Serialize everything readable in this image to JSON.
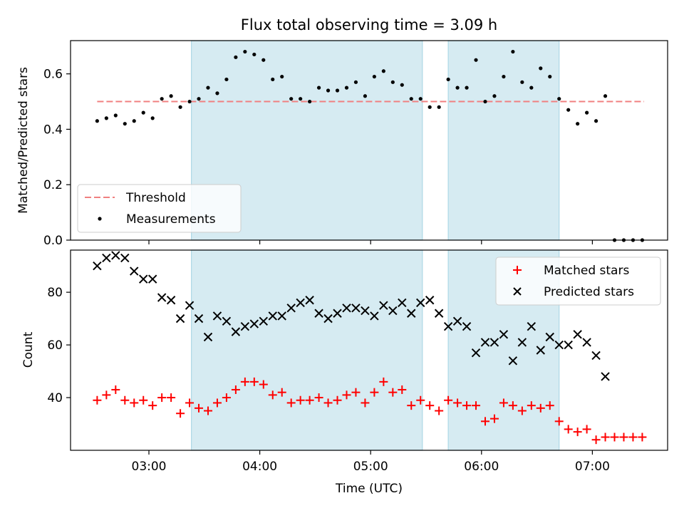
{
  "title": "Flux total observing time = 3.09 h",
  "xlabel": "Time (UTC)",
  "x_tick_labels": [
    "03:00",
    "04:00",
    "05:00",
    "06:00",
    "07:00"
  ],
  "colors": {
    "shade": "#add8e6",
    "threshold": "#f08080",
    "measurements": "#000000",
    "matched": "#ff0000",
    "predicted": "#000000"
  },
  "chart_data": [
    {
      "type": "scatter",
      "ylabel": "Matched/Predicted stars",
      "ylim": [
        0,
        0.72
      ],
      "y_ticks": [
        "0.0",
        "0.2",
        "0.4",
        "0.6"
      ],
      "y_tick_values": [
        0,
        0.2,
        0.4,
        0.6
      ],
      "shaded_intervals": [
        [
          "03:23",
          "05:28"
        ],
        [
          "05:42",
          "06:42"
        ]
      ],
      "legend": {
        "placement": "lower-left",
        "entries": [
          "Threshold",
          "Measurements"
        ]
      },
      "threshold": {
        "name": "Threshold",
        "value": 0.5,
        "x_range": [
          "02:32",
          "07:28"
        ]
      },
      "series": [
        {
          "name": "Measurements",
          "x": [
            "02:32",
            "02:37",
            "02:42",
            "02:47",
            "02:52",
            "02:57",
            "03:02",
            "03:07",
            "03:12",
            "03:17",
            "03:22",
            "03:27",
            "03:32",
            "03:37",
            "03:42",
            "03:47",
            "03:52",
            "03:57",
            "04:02",
            "04:07",
            "04:12",
            "04:17",
            "04:22",
            "04:27",
            "04:32",
            "04:37",
            "04:42",
            "04:47",
            "04:52",
            "04:57",
            "05:02",
            "05:07",
            "05:12",
            "05:17",
            "05:22",
            "05:27",
            "05:32",
            "05:37",
            "05:42",
            "05:47",
            "05:52",
            "05:57",
            "06:02",
            "06:07",
            "06:12",
            "06:17",
            "06:22",
            "06:27",
            "06:32",
            "06:37",
            "06:42",
            "06:47",
            "06:52",
            "06:57",
            "07:02",
            "07:07",
            "07:12",
            "07:17",
            "07:22",
            "07:27"
          ],
          "y": [
            0.43,
            0.44,
            0.45,
            0.42,
            0.43,
            0.46,
            0.44,
            0.51,
            0.52,
            0.48,
            0.5,
            0.51,
            0.55,
            0.53,
            0.58,
            0.66,
            0.68,
            0.67,
            0.65,
            0.58,
            0.59,
            0.51,
            0.51,
            0.5,
            0.55,
            0.54,
            0.54,
            0.55,
            0.57,
            0.52,
            0.59,
            0.61,
            0.57,
            0.56,
            0.51,
            0.51,
            0.48,
            0.48,
            0.58,
            0.55,
            0.55,
            0.65,
            0.5,
            0.52,
            0.59,
            0.68,
            0.57,
            0.55,
            0.62,
            0.59,
            0.51,
            0.47,
            0.42,
            0.46,
            0.43,
            0.52,
            0.0,
            0.0,
            0.0,
            0.0
          ]
        }
      ]
    },
    {
      "type": "scatter",
      "ylabel": "Count",
      "ylim": [
        20,
        96
      ],
      "y_ticks": [
        "40",
        "60",
        "80"
      ],
      "y_tick_values": [
        40,
        60,
        80
      ],
      "shaded_intervals": [
        [
          "03:23",
          "05:28"
        ],
        [
          "05:42",
          "06:42"
        ]
      ],
      "legend": {
        "placement": "upper-right",
        "entries": [
          "Matched stars",
          "Predicted stars"
        ]
      },
      "series": [
        {
          "name": "Matched stars",
          "marker": "plus",
          "x": [
            "02:32",
            "02:37",
            "02:42",
            "02:47",
            "02:52",
            "02:57",
            "03:02",
            "03:07",
            "03:12",
            "03:17",
            "03:22",
            "03:27",
            "03:32",
            "03:37",
            "03:42",
            "03:47",
            "03:52",
            "03:57",
            "04:02",
            "04:07",
            "04:12",
            "04:17",
            "04:22",
            "04:27",
            "04:32",
            "04:37",
            "04:42",
            "04:47",
            "04:52",
            "04:57",
            "05:02",
            "05:07",
            "05:12",
            "05:17",
            "05:22",
            "05:27",
            "05:32",
            "05:37",
            "05:42",
            "05:47",
            "05:52",
            "05:57",
            "06:02",
            "06:07",
            "06:12",
            "06:17",
            "06:22",
            "06:27",
            "06:32",
            "06:37",
            "06:42",
            "06:47",
            "06:52",
            "06:57",
            "07:02",
            "07:07",
            "07:12",
            "07:17",
            "07:22",
            "07:27"
          ],
          "y": [
            39,
            41,
            43,
            39,
            38,
            39,
            37,
            40,
            40,
            34,
            38,
            36,
            35,
            38,
            40,
            43,
            46,
            46,
            45,
            41,
            42,
            38,
            39,
            39,
            40,
            38,
            39,
            41,
            42,
            38,
            42,
            46,
            42,
            43,
            37,
            39,
            37,
            35,
            39,
            38,
            37,
            37,
            31,
            32,
            38,
            37,
            35,
            37,
            36,
            37,
            31,
            28,
            27,
            28,
            24,
            25,
            25,
            25,
            25,
            25
          ]
        },
        {
          "name": "Predicted stars",
          "marker": "x",
          "x": [
            "02:32",
            "02:37",
            "02:42",
            "02:47",
            "02:52",
            "02:57",
            "03:02",
            "03:07",
            "03:12",
            "03:17",
            "03:22",
            "03:27",
            "03:32",
            "03:37",
            "03:42",
            "03:47",
            "03:52",
            "03:57",
            "04:02",
            "04:07",
            "04:12",
            "04:17",
            "04:22",
            "04:27",
            "04:32",
            "04:37",
            "04:42",
            "04:47",
            "04:52",
            "04:57",
            "05:02",
            "05:07",
            "05:12",
            "05:17",
            "05:22",
            "05:27",
            "05:32",
            "05:37",
            "05:42",
            "05:47",
            "05:52",
            "05:57",
            "06:02",
            "06:07",
            "06:12",
            "06:17",
            "06:22",
            "06:27",
            "06:32",
            "06:37",
            "06:42",
            "06:47",
            "06:52",
            "06:57",
            "07:02",
            "07:07",
            "07:12"
          ],
          "y": [
            90,
            93,
            94,
            93,
            88,
            85,
            85,
            78,
            77,
            70,
            75,
            70,
            63,
            71,
            69,
            65,
            67,
            68,
            69,
            71,
            71,
            74,
            76,
            77,
            72,
            70,
            72,
            74,
            74,
            73,
            71,
            75,
            73,
            76,
            72,
            76,
            77,
            72,
            67,
            69,
            67,
            57,
            61,
            61,
            64,
            54,
            61,
            67,
            58,
            63,
            60,
            60,
            64,
            61,
            56,
            48,
            null
          ]
        }
      ]
    }
  ]
}
